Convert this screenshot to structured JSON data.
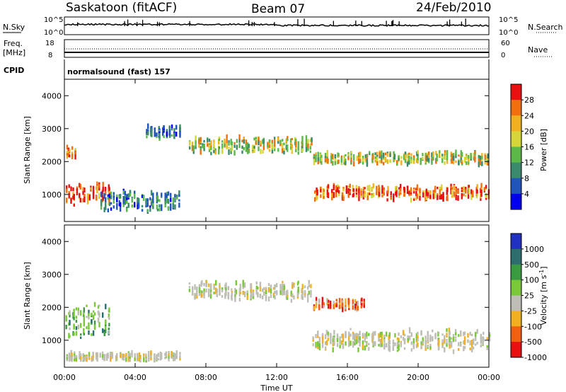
{
  "header": {
    "station": "Saskatoon (fitACF)",
    "beam": "Beam 07",
    "date": "24/Feb/2010"
  },
  "nsky_panel": {
    "left_label": "N.Sky",
    "right_label": "N.Search",
    "left_ticks": [
      "10^5",
      "10^0"
    ],
    "right_ticks": [
      "10^5",
      "10^0"
    ]
  },
  "freq_panel": {
    "left_label_1": "Freq.",
    "left_label_2": "[MHz]",
    "right_label": "Nave",
    "left_ticks": [
      "18",
      "8"
    ],
    "right_ticks": [
      "60",
      "0"
    ]
  },
  "cpid": {
    "label": "CPID",
    "text": "normalsound (fast) 157"
  },
  "x_axis": {
    "label": "Time UT",
    "ticks": [
      "00:00",
      "04:00",
      "08:00",
      "12:00",
      "16:00",
      "20:00",
      "00:00"
    ]
  },
  "chart_data": [
    {
      "type": "heatmap",
      "title": "",
      "xlabel": "Time UT",
      "ylabel": "Slant Range [km]",
      "xlim": [
        0,
        24
      ],
      "ylim": [
        180,
        4500
      ],
      "yticks": [
        1000,
        2000,
        3000,
        4000
      ],
      "colorbar": {
        "label": "Power [dB]",
        "ticks": [
          4,
          8,
          12,
          16,
          20,
          24,
          28
        ],
        "tick_labels": [
          "4",
          "8",
          "12",
          "16",
          "20",
          "24",
          "28"
        ],
        "range": [
          0,
          30
        ],
        "colors": [
          "#0000ee",
          "#2255bb",
          "#3a8a6e",
          "#5db84a",
          "#d6d63a",
          "#f0b020",
          "#f07010",
          "#e81010"
        ]
      },
      "echo_bands": [
        {
          "t_start": 0.0,
          "t_end": 2.6,
          "range_center": 1000,
          "range_width": 500,
          "level": "high"
        },
        {
          "t_start": 0.0,
          "t_end": 0.6,
          "range_center": 2300,
          "range_width": 300,
          "level": "high"
        },
        {
          "t_start": 2.0,
          "t_end": 6.5,
          "range_center": 800,
          "range_width": 500,
          "level": "low"
        },
        {
          "t_start": 4.5,
          "t_end": 6.5,
          "range_center": 2900,
          "range_width": 300,
          "level": "low"
        },
        {
          "t_start": 7.0,
          "t_end": 14.0,
          "range_center": 2500,
          "range_width": 400,
          "level": "mid"
        },
        {
          "t_start": 14.0,
          "t_end": 24.0,
          "range_center": 1050,
          "range_width": 350,
          "level": "high"
        },
        {
          "t_start": 14.0,
          "t_end": 24.0,
          "range_center": 2100,
          "range_width": 300,
          "level": "mid"
        }
      ]
    },
    {
      "type": "heatmap",
      "title": "",
      "xlabel": "Time UT",
      "ylabel": "Slant Range [km]",
      "xlim": [
        0,
        24
      ],
      "ylim": [
        180,
        4500
      ],
      "yticks": [
        1000,
        2000,
        3000,
        4000
      ],
      "colorbar": {
        "label": "Velocity [m s^-1]",
        "ticks": [
          1000,
          500,
          100,
          25,
          -25,
          -100,
          -500,
          -1000
        ],
        "tick_labels": [
          "1000",
          "500",
          "100",
          "25",
          "-25",
          "-100",
          "-500",
          "-1000"
        ],
        "colors": [
          "#2030c0",
          "#2c6e6e",
          "#3a9a40",
          "#78c838",
          "#bebeb6",
          "#f0b020",
          "#f06010",
          "#e81010"
        ]
      },
      "echo_bands": [
        {
          "t_start": 0.0,
          "t_end": 2.6,
          "range_center": 1600,
          "range_width": 800,
          "level": "positive"
        },
        {
          "t_start": 0.0,
          "t_end": 6.5,
          "range_center": 500,
          "range_width": 200,
          "level": "near-zero"
        },
        {
          "t_start": 7.0,
          "t_end": 14.0,
          "range_center": 2500,
          "range_width": 450,
          "level": "near-zero"
        },
        {
          "t_start": 14.0,
          "t_end": 24.0,
          "range_center": 1000,
          "range_width": 500,
          "level": "near-zero"
        },
        {
          "t_start": 14.0,
          "t_end": 17.0,
          "range_center": 2100,
          "range_width": 250,
          "level": "negative"
        }
      ]
    }
  ]
}
